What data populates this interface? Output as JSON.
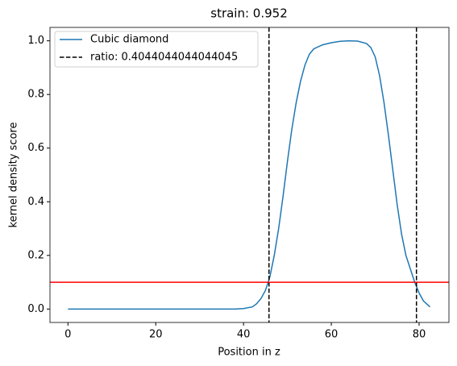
{
  "chart_data": {
    "type": "line",
    "title": "strain: 0.952",
    "x_label": "Position in z",
    "y_label": "kernel density score",
    "series": [
      {
        "name": "Cubic diamond",
        "color": "#1f77b4",
        "x": [
          0,
          10,
          20,
          30,
          38,
          40,
          42,
          43,
          44,
          45,
          46,
          47,
          48,
          49,
          50,
          51,
          52,
          53,
          54,
          55,
          56,
          58,
          60,
          62,
          64,
          66,
          68,
          69,
          70,
          71,
          72,
          73,
          74,
          75,
          76,
          77,
          78,
          79,
          80,
          81,
          82.5
        ],
        "values": [
          0,
          0,
          0,
          0,
          0,
          0.002,
          0.008,
          0.02,
          0.04,
          0.07,
          0.12,
          0.2,
          0.3,
          0.42,
          0.55,
          0.67,
          0.77,
          0.85,
          0.91,
          0.95,
          0.97,
          0.985,
          0.993,
          0.998,
          1.0,
          0.999,
          0.99,
          0.975,
          0.94,
          0.87,
          0.77,
          0.65,
          0.52,
          0.39,
          0.28,
          0.2,
          0.15,
          0.1,
          0.06,
          0.03,
          0.008
        ]
      }
    ],
    "vlines": {
      "name": "ratio: 0.4044044044044045",
      "color": "#000000",
      "values": [
        45.8,
        79.4
      ]
    },
    "hline": {
      "value": 0.1,
      "color": "#ff0000"
    },
    "xlim": [
      -4.1,
      86.8
    ],
    "xticks": [
      0,
      20,
      40,
      60,
      80
    ],
    "ylim": [
      -0.05,
      1.05
    ],
    "yticks": [
      {
        "value": 0,
        "label": "0.0"
      },
      0.2,
      0.4,
      0.6,
      0.8,
      {
        "value": 1,
        "label": "1.0"
      }
    ],
    "legend": "upper left"
  }
}
